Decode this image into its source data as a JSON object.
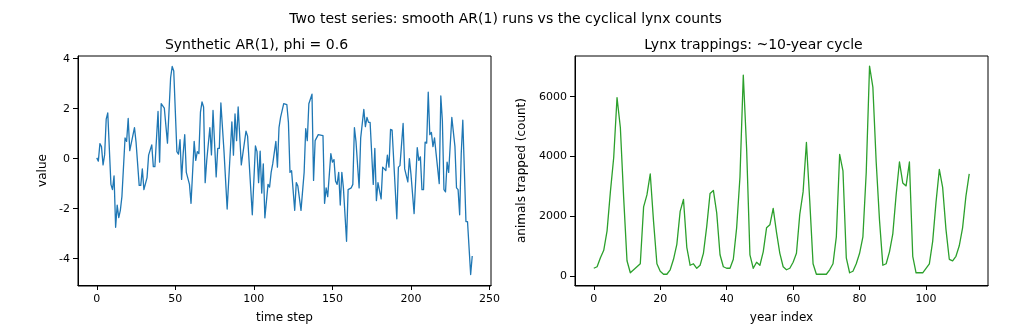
{
  "chart_data": [
    {
      "type": "line",
      "title": "Synthetic AR(1), phi = 0.6",
      "xlabel": "time step",
      "ylabel": "value",
      "annotations": [
        "Two test series: smooth AR(1) runs vs the cyclical lynx counts"
      ],
      "xlim": [
        -11.95,
        250.95
      ],
      "ylim": [
        -5.06,
        4.11
      ],
      "xticks": [
        0,
        50,
        100,
        150,
        200,
        250
      ],
      "yticks": [
        -4,
        -2,
        0,
        2,
        4
      ],
      "grid": false,
      "marker": "none",
      "line_style": "solid",
      "series": [
        {
          "color": "#1f77b4",
          "x": [
            0,
            1,
            2,
            3,
            4,
            5,
            6,
            7,
            9,
            10,
            11,
            12,
            13,
            14,
            15,
            16,
            18,
            19,
            20,
            21,
            24,
            25,
            27,
            28,
            29,
            30,
            32,
            33,
            35,
            36,
            37,
            39,
            40,
            41,
            43,
            45,
            47,
            48,
            49,
            51,
            52,
            53,
            54,
            55,
            56,
            57,
            59,
            60,
            62,
            63,
            64,
            65,
            66,
            67,
            68,
            69,
            70,
            72,
            73,
            74,
            76,
            77,
            78,
            79,
            81,
            83,
            86,
            87,
            88,
            89,
            90,
            92,
            95,
            96,
            99,
            101,
            102,
            103,
            104,
            105,
            106,
            107,
            109,
            110,
            111,
            112,
            114,
            115,
            116,
            117,
            119,
            121,
            122,
            123,
            124,
            126,
            127,
            128,
            130,
            132,
            133,
            134,
            135,
            137,
            138,
            139,
            141,
            144,
            145,
            146,
            147,
            149,
            150,
            151,
            152,
            153,
            154,
            155,
            156,
            157,
            159,
            160,
            162,
            163,
            164,
            165,
            167,
            168,
            170,
            171,
            172,
            173,
            174,
            176,
            177,
            178,
            179,
            181,
            182,
            184,
            185,
            186,
            187,
            188,
            191,
            192,
            193,
            195,
            196,
            198,
            199,
            200,
            202,
            204,
            205,
            206,
            207,
            208,
            209,
            210,
            211,
            212,
            213,
            214,
            215,
            216,
            218,
            219,
            220,
            221,
            222,
            223,
            224,
            226,
            228,
            229,
            230,
            231,
            232,
            233,
            235,
            236,
            238,
            239
          ],
          "values": [
            0.03,
            -0.1,
            0.6,
            0.48,
            -0.25,
            0.15,
            1.58,
            1.83,
            -1.03,
            -1.24,
            -0.69,
            -2.75,
            -1.86,
            -2.36,
            -2.07,
            -1.52,
            0.83,
            0.69,
            1.61,
            0.32,
            1.24,
            0.66,
            -1.07,
            -1.07,
            -0.41,
            -1.24,
            -0.76,
            0.14,
            0.55,
            -0.32,
            -0.32,
            1.89,
            -0.14,
            2.2,
            2.02,
            0.62,
            3.24,
            3.69,
            3.51,
            0.28,
            0.18,
            0.76,
            -0.83,
            0.2,
            0.96,
            -0.55,
            -1.03,
            -1.79,
            0.69,
            -0.07,
            0.28,
            0.2,
            1.86,
            2.27,
            2.07,
            -0.96,
            -0.07,
            1.24,
            0.15,
            1.93,
            -0.73,
            0.41,
            0.41,
            2.23,
            0.28,
            -2.02,
            1.47,
            0.14,
            1.79,
            0.72,
            2.07,
            -0.25,
            1.1,
            0.9,
            -2.25,
            0.51,
            0.28,
            -0.96,
            0.3,
            -1.38,
            -0.21,
            -2.37,
            -1.03,
            -1.14,
            -0.55,
            -0.21,
            0.69,
            -0.34,
            1.24,
            1.65,
            2.2,
            2.16,
            1.45,
            -0.55,
            -0.48,
            -2.07,
            -0.96,
            -1.1,
            -2.07,
            -0.55,
            1.2,
            0.72,
            2.2,
            2.58,
            -0.87,
            0.72,
            0.96,
            0.92,
            -1.79,
            -1.17,
            -1.52,
            0.2,
            -0.14,
            -0.04,
            -0.9,
            -1.03,
            -0.55,
            -1.86,
            -0.55,
            -1.17,
            -3.31,
            -1.24,
            -1.17,
            -1.03,
            1.24,
            0.69,
            -1.17,
            0.83,
            1.97,
            1.28,
            1.65,
            1.45,
            1.45,
            -1.03,
            0.41,
            -1.68,
            -0.96,
            -1.61,
            -0.34,
            -0.48,
            0.14,
            -0.34,
            1.17,
            1.14,
            -2.41,
            -0.34,
            -0.28,
            1.41,
            -0.41,
            -0.93,
            0.0,
            -0.62,
            -2.2,
            0.44,
            -0.07,
            0.07,
            -1.24,
            -1.24,
            0.66,
            0.62,
            2.66,
            0.96,
            1.05,
            0.48,
            0.83,
            0.2,
            -1.0,
            2.51,
            1.52,
            -1.24,
            -1.33,
            -0.14,
            -0.55,
            1.65,
            0.48,
            -1.17,
            -1.24,
            -2.25,
            0.2,
            1.54,
            -2.52,
            -2.52,
            -4.64,
            -3.9
          ]
        }
      ]
    },
    {
      "type": "line",
      "title": "Lynx trappings: ~10-year cycle",
      "xlabel": "year index",
      "ylabel": "animals trapped (count)",
      "xlim": [
        -5.65,
        118.65
      ],
      "ylim": [
        -308.6,
        7338.6
      ],
      "xticks": [
        0,
        20,
        40,
        60,
        80,
        100
      ],
      "yticks": [
        0,
        2000,
        4000,
        6000
      ],
      "grid": false,
      "marker": "none",
      "line_style": "solid",
      "series": [
        {
          "color": "#2ca02c",
          "x": [
            0,
            1,
            2,
            3,
            4,
            5,
            6,
            7,
            8,
            9,
            10,
            11,
            12,
            13,
            14,
            15,
            16,
            17,
            18,
            19,
            20,
            21,
            22,
            23,
            24,
            25,
            26,
            27,
            28,
            29,
            30,
            31,
            32,
            33,
            34,
            35,
            36,
            37,
            38,
            39,
            40,
            41,
            42,
            43,
            44,
            45,
            46,
            47,
            48,
            49,
            50,
            51,
            52,
            53,
            54,
            55,
            56,
            57,
            58,
            59,
            60,
            61,
            62,
            63,
            64,
            65,
            66,
            67,
            68,
            69,
            70,
            71,
            72,
            73,
            74,
            75,
            76,
            77,
            78,
            79,
            80,
            81,
            82,
            83,
            84,
            85,
            86,
            87,
            88,
            89,
            90,
            91,
            92,
            93,
            94,
            95,
            96,
            97,
            98,
            99,
            100,
            101,
            102,
            103,
            104,
            105,
            106,
            107,
            108,
            109,
            110,
            111,
            112,
            113
          ],
          "values": [
            250,
            300,
            600,
            850,
            1500,
            2800,
            3950,
            5950,
            4950,
            2600,
            500,
            100,
            200,
            300,
            400,
            2300,
            2700,
            3400,
            1800,
            400,
            150,
            50,
            50,
            200,
            550,
            1050,
            2150,
            2550,
            950,
            350,
            400,
            250,
            350,
            750,
            1650,
            2750,
            2850,
            2100,
            700,
            300,
            250,
            250,
            550,
            1600,
            3300,
            6700,
            4250,
            700,
            250,
            450,
            350,
            800,
            1600,
            1700,
            2250,
            1450,
            750,
            300,
            200,
            250,
            450,
            750,
            2050,
            2800,
            4450,
            2500,
            400,
            50,
            50,
            50,
            50,
            200,
            400,
            1300,
            4050,
            3500,
            600,
            100,
            150,
            400,
            750,
            1300,
            3450,
            7000,
            6300,
            3800,
            1850,
            350,
            400,
            800,
            1400,
            2700,
            3800,
            3100,
            3000,
            3800,
            650,
            100,
            100,
            100,
            250,
            400,
            1150,
            2450,
            3550,
            2950,
            1550,
            550,
            500,
            650,
            1000,
            1600,
            2650,
            3400
          ]
        }
      ]
    }
  ]
}
